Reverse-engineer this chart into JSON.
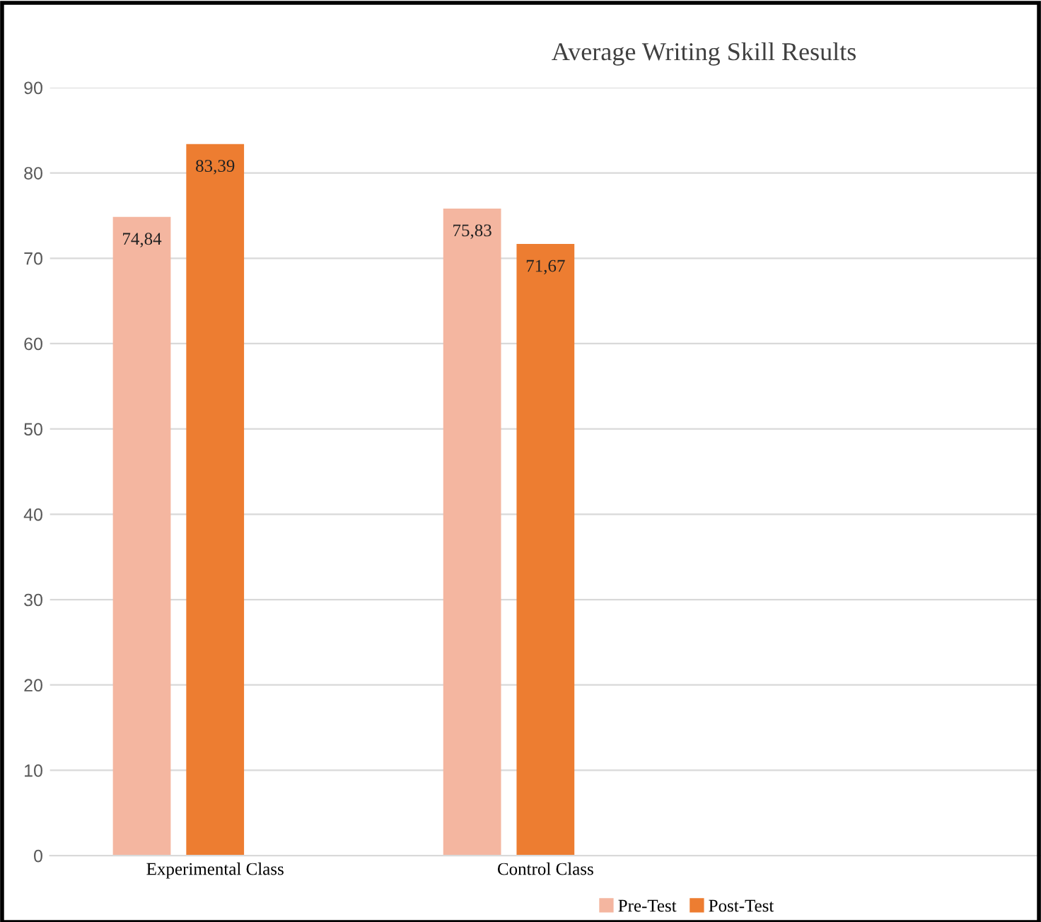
{
  "chart_data": {
    "type": "bar",
    "title": "Average Writing Skill Results",
    "categories": [
      "Experimental Class",
      "Control Class",
      null
    ],
    "series": [
      {
        "name": "Pre-Test",
        "color": "#f4b6a0",
        "values": [
          74.84,
          75.83,
          null
        ],
        "value_labels": [
          "74,84",
          "75,83",
          null
        ]
      },
      {
        "name": "Post-Test",
        "color": "#ed7d31",
        "values": [
          83.39,
          71.67,
          null
        ],
        "value_labels": [
          "83,39",
          "71,67",
          null
        ]
      }
    ],
    "ylim": [
      0,
      90
    ],
    "yticks": [
      0,
      10,
      20,
      30,
      40,
      50,
      60,
      70,
      80,
      90
    ],
    "grid": "y",
    "legend": "bottom"
  }
}
